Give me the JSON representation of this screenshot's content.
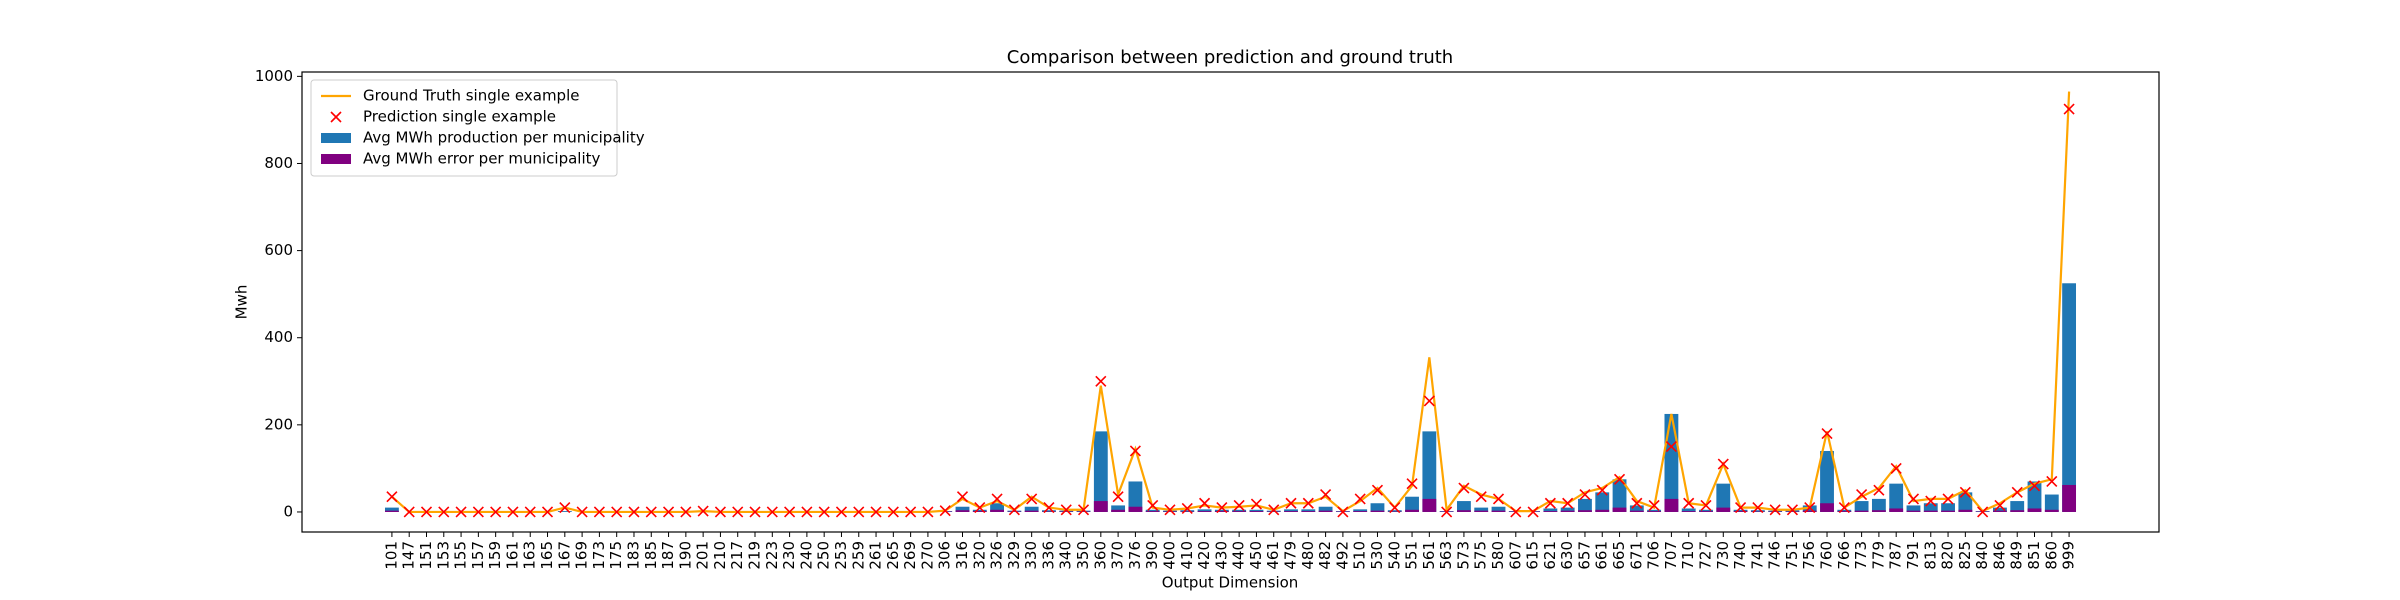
{
  "chart_data": {
    "type": "bar",
    "title": "Comparison between prediction and ground truth",
    "xlabel": "Output Dimension",
    "ylabel": "Mwh",
    "legend": "upper left",
    "categories": [
      "101",
      "147",
      "151",
      "153",
      "155",
      "157",
      "159",
      "161",
      "163",
      "165",
      "167",
      "169",
      "173",
      "175",
      "183",
      "185",
      "187",
      "190",
      "201",
      "210",
      "217",
      "219",
      "223",
      "230",
      "240",
      "250",
      "253",
      "259",
      "261",
      "265",
      "269",
      "270",
      "306",
      "316",
      "320",
      "326",
      "329",
      "330",
      "336",
      "340",
      "350",
      "360",
      "370",
      "376",
      "390",
      "400",
      "410",
      "420",
      "430",
      "440",
      "450",
      "461",
      "479",
      "480",
      "482",
      "492",
      "510",
      "530",
      "540",
      "551",
      "561",
      "563",
      "573",
      "575",
      "580",
      "607",
      "615",
      "621",
      "630",
      "657",
      "661",
      "665",
      "671",
      "706",
      "707",
      "710",
      "727",
      "730",
      "740",
      "741",
      "746",
      "751",
      "756",
      "760",
      "766",
      "773",
      "779",
      "787",
      "791",
      "813",
      "820",
      "825",
      "840",
      "846",
      "849",
      "851",
      "860",
      "999"
    ],
    "ylim": [
      -46,
      1010
    ],
    "yticks": [
      0,
      200,
      400,
      600,
      800,
      1000
    ],
    "series": [
      {
        "name": "Ground Truth single example",
        "type": "line",
        "color": "#ffa500",
        "values": [
          35,
          0,
          0,
          0,
          0,
          0,
          0,
          0,
          0,
          0,
          10,
          0,
          0,
          0,
          0,
          0,
          0,
          0,
          2,
          0,
          0,
          0,
          0,
          0,
          0,
          0,
          0,
          0,
          0,
          0,
          0,
          0,
          3,
          30,
          10,
          25,
          5,
          35,
          10,
          5,
          5,
          290,
          40,
          145,
          10,
          5,
          8,
          15,
          10,
          12,
          15,
          5,
          20,
          20,
          35,
          2,
          25,
          55,
          10,
          60,
          355,
          5,
          60,
          40,
          30,
          2,
          2,
          25,
          20,
          45,
          55,
          80,
          25,
          10,
          225,
          20,
          15,
          110,
          10,
          10,
          5,
          5,
          10,
          185,
          10,
          35,
          55,
          105,
          25,
          30,
          30,
          50,
          2,
          20,
          45,
          65,
          75,
          965
        ]
      },
      {
        "name": "Prediction single example",
        "type": "scatter",
        "color": "#ff0000",
        "values": [
          35,
          0,
          0,
          0,
          0,
          0,
          0,
          0,
          0,
          0,
          10,
          0,
          0,
          0,
          0,
          0,
          0,
          0,
          2,
          0,
          0,
          0,
          0,
          0,
          0,
          0,
          0,
          0,
          0,
          0,
          0,
          0,
          3,
          35,
          10,
          30,
          5,
          30,
          10,
          5,
          5,
          300,
          35,
          140,
          15,
          5,
          8,
          20,
          10,
          15,
          18,
          5,
          20,
          20,
          40,
          0,
          30,
          50,
          10,
          65,
          255,
          0,
          55,
          35,
          30,
          0,
          0,
          20,
          20,
          40,
          50,
          75,
          20,
          15,
          150,
          20,
          15,
          110,
          10,
          10,
          5,
          5,
          10,
          180,
          10,
          40,
          50,
          100,
          30,
          25,
          30,
          45,
          0,
          15,
          45,
          60,
          70,
          925
        ]
      },
      {
        "name": "Avg MWh production per municipality",
        "type": "bar",
        "color": "#1f77b4",
        "values": [
          10,
          0,
          0,
          0,
          0,
          0,
          0,
          0,
          0,
          0,
          2,
          0,
          0,
          0,
          0,
          0,
          0,
          0,
          0,
          0,
          0,
          0,
          0,
          0,
          0,
          0,
          0,
          0,
          0,
          0,
          0,
          0,
          2,
          12,
          5,
          20,
          3,
          12,
          4,
          3,
          3,
          185,
          15,
          70,
          5,
          3,
          4,
          6,
          5,
          5,
          5,
          3,
          6,
          6,
          12,
          2,
          6,
          20,
          4,
          35,
          185,
          2,
          25,
          10,
          12,
          2,
          2,
          8,
          10,
          30,
          45,
          75,
          15,
          5,
          225,
          8,
          5,
          65,
          5,
          4,
          3,
          4,
          15,
          140,
          5,
          25,
          30,
          65,
          15,
          20,
          20,
          45,
          2,
          10,
          25,
          70,
          40,
          525
        ]
      },
      {
        "name": "Avg MWh error per municipality",
        "type": "bar",
        "color": "#800080",
        "values": [
          3,
          0,
          0,
          0,
          0,
          0,
          0,
          0,
          0,
          0,
          0,
          0,
          0,
          0,
          0,
          0,
          0,
          0,
          0,
          0,
          0,
          0,
          0,
          0,
          0,
          0,
          0,
          0,
          0,
          0,
          0,
          0,
          1,
          4,
          2,
          5,
          1,
          3,
          1,
          1,
          1,
          25,
          5,
          12,
          2,
          1,
          1,
          2,
          2,
          2,
          2,
          1,
          2,
          2,
          3,
          1,
          2,
          3,
          1,
          5,
          30,
          1,
          4,
          3,
          3,
          1,
          1,
          2,
          3,
          4,
          5,
          10,
          3,
          2,
          30,
          2,
          2,
          10,
          2,
          1,
          1,
          1,
          3,
          20,
          2,
          3,
          4,
          8,
          3,
          3,
          3,
          5,
          1,
          3,
          4,
          8,
          5,
          62
        ]
      }
    ]
  }
}
